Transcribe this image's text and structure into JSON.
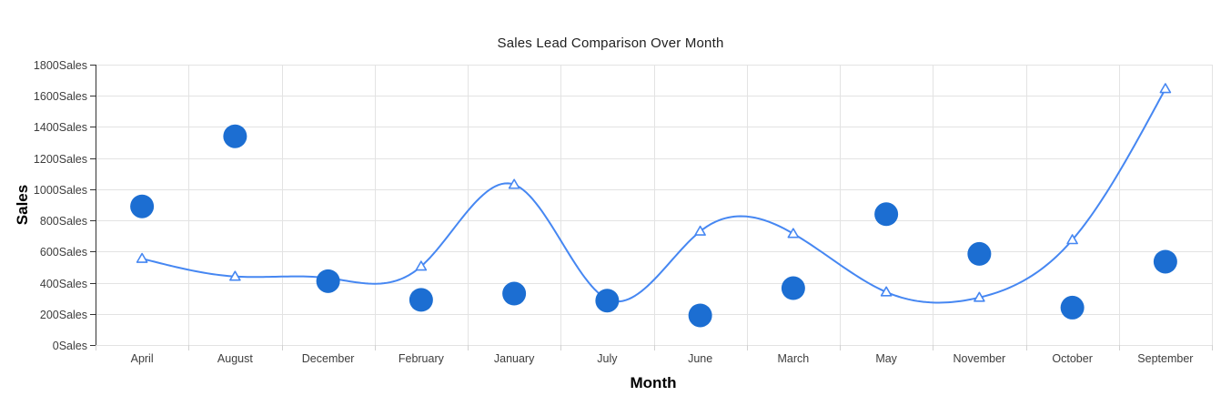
{
  "page": {
    "background": "#ffffff"
  },
  "chart_data": {
    "type": "line",
    "subtype": "spline-with-scatter-overlay",
    "title": "Sales Lead Comparison Over Month",
    "xlabel": "Month",
    "ylabel": "Sales",
    "categories": [
      "April",
      "August",
      "December",
      "February",
      "January",
      "July",
      "June",
      "March",
      "May",
      "November",
      "October",
      "September"
    ],
    "series": [
      {
        "name": "spline-line",
        "type": "spline",
        "marker": "triangle-open",
        "color": "#4687f2",
        "marker_fill": "#ffffff",
        "values": [
          555,
          440,
          430,
          505,
          1030,
          295,
          730,
          715,
          340,
          305,
          675,
          1645
        ]
      },
      {
        "name": "scatter-bubbles",
        "type": "scatter",
        "marker": "circle",
        "color": "#1c6ed2",
        "values": [
          890,
          1340,
          410,
          290,
          330,
          285,
          190,
          365,
          840,
          585,
          240,
          535
        ]
      }
    ],
    "ylim": [
      0,
      1800
    ],
    "ytick_step": 200,
    "ytick_labels": [
      "0Sales",
      "200Sales",
      "400Sales",
      "600Sales",
      "800Sales",
      "1000Sales",
      "1200Sales",
      "1400Sales",
      "1600Sales",
      "1800Sales"
    ],
    "grid": true,
    "legend": "none",
    "colors": {
      "grid_line": "#e3e3e3",
      "y_axis_line": "#333333",
      "x_tick": "#d2d2d2",
      "tick_label": "#3d3d3d",
      "title_text": "#1f1f1f",
      "axis_title_text": "#000000"
    }
  }
}
